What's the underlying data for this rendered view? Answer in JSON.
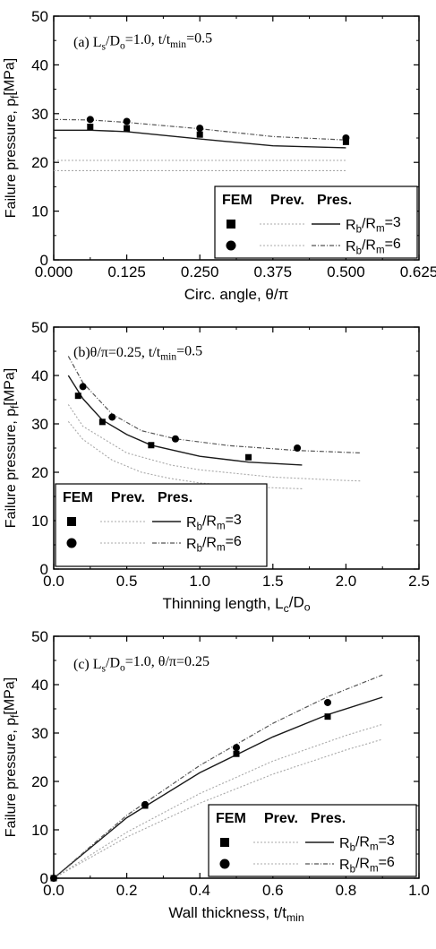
{
  "chart_data": [
    {
      "type": "line",
      "annotation": {
        "parts": [
          [
            "(a) L",
            ""
          ],
          [
            "s",
            "sub"
          ],
          [
            "/D",
            ""
          ],
          [
            "o",
            "sub"
          ],
          [
            "=1.0, t/t",
            ""
          ],
          [
            "min",
            "sub"
          ],
          [
            "=0.5",
            ""
          ]
        ]
      },
      "xlabel": "Circ. angle, θ/π",
      "ylabel": {
        "parts": [
          [
            "Failure pressure, p",
            ""
          ],
          [
            "f",
            "sub"
          ],
          [
            "[MPa]",
            ""
          ]
        ]
      },
      "xlim": [
        0,
        0.625
      ],
      "ylim": [
        0,
        50
      ],
      "xticks": [
        "0.000",
        "0.125",
        "0.250",
        "0.375",
        "0.500",
        "0.625"
      ],
      "xtick_values": [
        0,
        0.125,
        0.25,
        0.375,
        0.5,
        0.625
      ],
      "yticks": [
        "0",
        "10",
        "20",
        "30",
        "40",
        "50"
      ],
      "ytick_values": [
        0,
        10,
        20,
        30,
        40,
        50
      ],
      "legend": {
        "position": "bottom-right",
        "header_fem": "FEM",
        "header_prev": "Prev.",
        "header_pres": "Pres."
      },
      "series": [
        {
          "name": {
            "parts": [
              [
                "R",
                ""
              ],
              [
                "b",
                "sub"
              ],
              [
                "/R",
                ""
              ],
              [
                "m",
                "sub"
              ],
              [
                "=3",
                ""
              ]
            ]
          },
          "marker": "square",
          "fem": [
            [
              0.0625,
              27.3
            ],
            [
              0.125,
              27.0
            ],
            [
              0.25,
              25.7
            ],
            [
              0.5,
              24.2
            ]
          ],
          "prev": [
            [
              0,
              18.3
            ],
            [
              0.5,
              18.3
            ]
          ],
          "pres": [
            [
              0,
              26.6
            ],
            [
              0.0625,
              26.6
            ],
            [
              0.125,
              26.3
            ],
            [
              0.25,
              24.8
            ],
            [
              0.375,
              23.4
            ],
            [
              0.5,
              23.0
            ]
          ]
        },
        {
          "name": {
            "parts": [
              [
                "R",
                ""
              ],
              [
                "b",
                "sub"
              ],
              [
                "/R",
                ""
              ],
              [
                "m",
                "sub"
              ],
              [
                "=6",
                ""
              ]
            ]
          },
          "marker": "circle",
          "fem": [
            [
              0.0625,
              28.8
            ],
            [
              0.125,
              28.4
            ],
            [
              0.25,
              27.0
            ],
            [
              0.5,
              25.0
            ]
          ],
          "prev": [
            [
              0,
              20.4
            ],
            [
              0.5,
              20.4
            ]
          ],
          "pres": [
            [
              0,
              28.8
            ],
            [
              0.0625,
              28.7
            ],
            [
              0.125,
              28.2
            ],
            [
              0.25,
              26.9
            ],
            [
              0.375,
              25.3
            ],
            [
              0.5,
              24.6
            ]
          ]
        }
      ]
    },
    {
      "type": "line",
      "annotation": {
        "parts": [
          [
            "(b)θ/π=0.25, t/t",
            ""
          ],
          [
            "min",
            "sub"
          ],
          [
            "=0.5",
            ""
          ]
        ]
      },
      "xlabel": {
        "parts": [
          [
            "Thinning length, L",
            ""
          ],
          [
            "c",
            "sub"
          ],
          [
            "/D",
            ""
          ],
          [
            "o",
            "sub"
          ]
        ]
      },
      "ylabel": {
        "parts": [
          [
            "Failure pressure, p",
            ""
          ],
          [
            "f",
            "sub"
          ],
          [
            "[MPa]",
            ""
          ]
        ]
      },
      "xlim": [
        0,
        2.5
      ],
      "ylim": [
        0,
        50
      ],
      "xticks": [
        "0.0",
        "0.5",
        "1.0",
        "1.5",
        "2.0",
        "2.5"
      ],
      "xtick_values": [
        0,
        0.5,
        1.0,
        1.5,
        2.0,
        2.5
      ],
      "yticks": [
        "0",
        "10",
        "20",
        "30",
        "40",
        "50"
      ],
      "ytick_values": [
        0,
        10,
        20,
        30,
        40,
        50
      ],
      "legend": {
        "position": "bottom-left",
        "header_fem": "FEM",
        "header_prev": "Prev.",
        "header_pres": "Pres."
      },
      "series": [
        {
          "name": {
            "parts": [
              [
                "R",
                ""
              ],
              [
                "b",
                "sub"
              ],
              [
                "/R",
                ""
              ],
              [
                "m",
                "sub"
              ],
              [
                "=3",
                ""
              ]
            ]
          },
          "marker": "square",
          "fem": [
            [
              0.167,
              35.8
            ],
            [
              0.333,
              30.4
            ],
            [
              0.667,
              25.6
            ],
            [
              1.333,
              23.1
            ]
          ],
          "prev": [
            [
              0.1,
              30.5
            ],
            [
              0.2,
              26.8
            ],
            [
              0.4,
              22.5
            ],
            [
              0.6,
              20.0
            ],
            [
              0.8,
              18.7
            ],
            [
              1.0,
              17.8
            ],
            [
              1.3,
              17.0
            ],
            [
              1.7,
              16.6
            ]
          ],
          "pres": [
            [
              0.1,
              40.0
            ],
            [
              0.2,
              35.2
            ],
            [
              0.333,
              30.8
            ],
            [
              0.5,
              27.8
            ],
            [
              0.667,
              25.6
            ],
            [
              1.0,
              23.3
            ],
            [
              1.333,
              22.1
            ],
            [
              1.7,
              21.5
            ]
          ]
        },
        {
          "name": {
            "parts": [
              [
                "R",
                ""
              ],
              [
                "b",
                "sub"
              ],
              [
                "/R",
                ""
              ],
              [
                "m",
                "sub"
              ],
              [
                "=6",
                ""
              ]
            ]
          },
          "marker": "circle",
          "fem": [
            [
              0.2,
              37.7
            ],
            [
              0.4,
              31.4
            ],
            [
              0.833,
              26.9
            ],
            [
              1.667,
              25.0
            ]
          ],
          "prev": [
            [
              0.1,
              34.0
            ],
            [
              0.2,
              29.5
            ],
            [
              0.5,
              24.0
            ],
            [
              0.8,
              21.5
            ],
            [
              1.0,
              20.5
            ],
            [
              1.5,
              19.0
            ],
            [
              2.0,
              18.3
            ],
            [
              2.1,
              18.2
            ]
          ],
          "pres": [
            [
              0.1,
              44.0
            ],
            [
              0.2,
              38.5
            ],
            [
              0.4,
              32.0
            ],
            [
              0.6,
              28.6
            ],
            [
              0.833,
              26.9
            ],
            [
              1.2,
              25.5
            ],
            [
              1.667,
              24.5
            ],
            [
              2.1,
              24.0
            ]
          ]
        }
      ]
    },
    {
      "type": "line",
      "annotation": {
        "parts": [
          [
            "(c) L",
            ""
          ],
          [
            "s",
            "sub"
          ],
          [
            "/D",
            ""
          ],
          [
            "o",
            "sub"
          ],
          [
            "=1.0,  θ/π=0.25",
            ""
          ]
        ]
      },
      "xlabel": {
        "parts": [
          [
            "Wall thickness, t/t",
            ""
          ],
          [
            "min",
            "sub"
          ]
        ]
      },
      "ylabel": {
        "parts": [
          [
            "Failure pressure, p",
            ""
          ],
          [
            "f",
            "sub"
          ],
          [
            "[MPa]",
            ""
          ]
        ]
      },
      "xlim": [
        0,
        1.0
      ],
      "ylim": [
        0,
        50
      ],
      "xticks": [
        "0.0",
        "0.2",
        "0.4",
        "0.6",
        "0.8",
        "1.0"
      ],
      "xtick_values": [
        0,
        0.2,
        0.4,
        0.6,
        0.8,
        1.0
      ],
      "yticks": [
        "0",
        "10",
        "20",
        "30",
        "40",
        "50"
      ],
      "ytick_values": [
        0,
        10,
        20,
        30,
        40,
        50
      ],
      "legend": {
        "position": "bottom-right",
        "header_fem": "FEM",
        "header_prev": "Prev.",
        "header_pres": "Pres."
      },
      "series": [
        {
          "name": {
            "parts": [
              [
                "R",
                ""
              ],
              [
                "b",
                "sub"
              ],
              [
                "/R",
                ""
              ],
              [
                "m",
                "sub"
              ],
              [
                "=3",
                ""
              ]
            ]
          },
          "marker": "square",
          "fem": [
            [
              0,
              0
            ],
            [
              0.25,
              15.0
            ],
            [
              0.5,
              25.7
            ],
            [
              0.75,
              33.4
            ]
          ],
          "prev": [
            [
              0,
              0
            ],
            [
              0.2,
              8.5
            ],
            [
              0.4,
              15.5
            ],
            [
              0.6,
              21.5
            ],
            [
              0.8,
              26.5
            ],
            [
              0.9,
              28.7
            ]
          ],
          "pres": [
            [
              0,
              0
            ],
            [
              0.2,
              12.5
            ],
            [
              0.4,
              21.8
            ],
            [
              0.6,
              29.2
            ],
            [
              0.75,
              33.8
            ],
            [
              0.9,
              37.4
            ]
          ]
        },
        {
          "name": {
            "parts": [
              [
                "R",
                ""
              ],
              [
                "b",
                "sub"
              ],
              [
                "/R",
                ""
              ],
              [
                "m",
                "sub"
              ],
              [
                "=6",
                ""
              ]
            ]
          },
          "marker": "circle",
          "fem": [
            [
              0,
              0
            ],
            [
              0.25,
              15.2
            ],
            [
              0.5,
              27.0
            ],
            [
              0.75,
              36.3
            ]
          ],
          "prev": [
            [
              0,
              0
            ],
            [
              0.2,
              9.5
            ],
            [
              0.4,
              17.5
            ],
            [
              0.6,
              24.2
            ],
            [
              0.8,
              29.5
            ],
            [
              0.9,
              31.8
            ]
          ],
          "pres": [
            [
              0,
              0
            ],
            [
              0.2,
              13.0
            ],
            [
              0.4,
              23.3
            ],
            [
              0.6,
              32.0
            ],
            [
              0.75,
              37.5
            ],
            [
              0.9,
              42.0
            ]
          ]
        }
      ]
    }
  ]
}
